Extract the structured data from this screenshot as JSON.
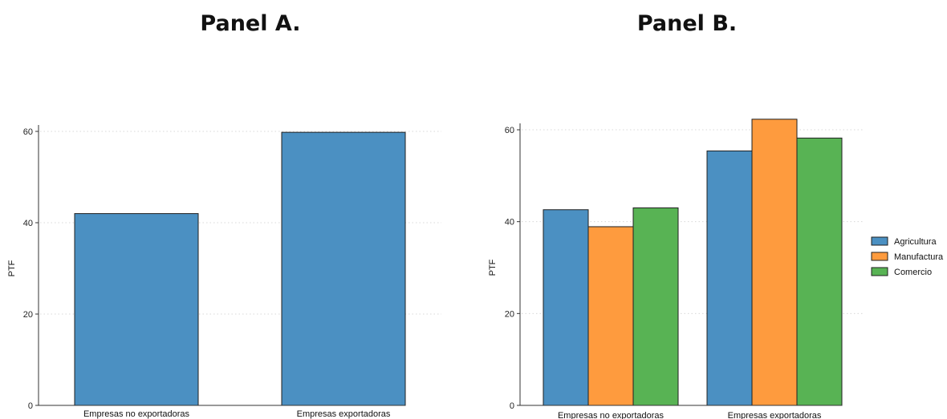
{
  "chart_data": [
    {
      "type": "bar",
      "title": "Panel A.",
      "ylabel": "PTF",
      "xlabel": "",
      "categories": [
        "Empresas no exportadoras",
        "Empresas exportadoras"
      ],
      "series": [
        {
          "values": [
            42,
            59.8
          ],
          "color": "#4b90c2"
        }
      ],
      "ylim": [
        0,
        60
      ],
      "yticks": [
        0,
        20,
        40,
        60
      ],
      "grid": true,
      "legend": "none"
    },
    {
      "type": "bar",
      "title": "Panel B.",
      "ylabel": "PTF",
      "xlabel": "",
      "categories": [
        "Empresas no exportadoras",
        "Empresas exportadoras"
      ],
      "series": [
        {
          "name": "Agricultura",
          "values": [
            42.6,
            55.4
          ],
          "color": "#4b90c2"
        },
        {
          "name": "Manufactura",
          "values": [
            38.9,
            62.3
          ],
          "color": "#fe9b3e"
        },
        {
          "name": "Comercio",
          "values": [
            43,
            58.2
          ],
          "color": "#58b354"
        }
      ],
      "ylim": [
        0,
        60
      ],
      "yticks": [
        0,
        20,
        40,
        60
      ],
      "grid": true,
      "legend": "right"
    }
  ]
}
